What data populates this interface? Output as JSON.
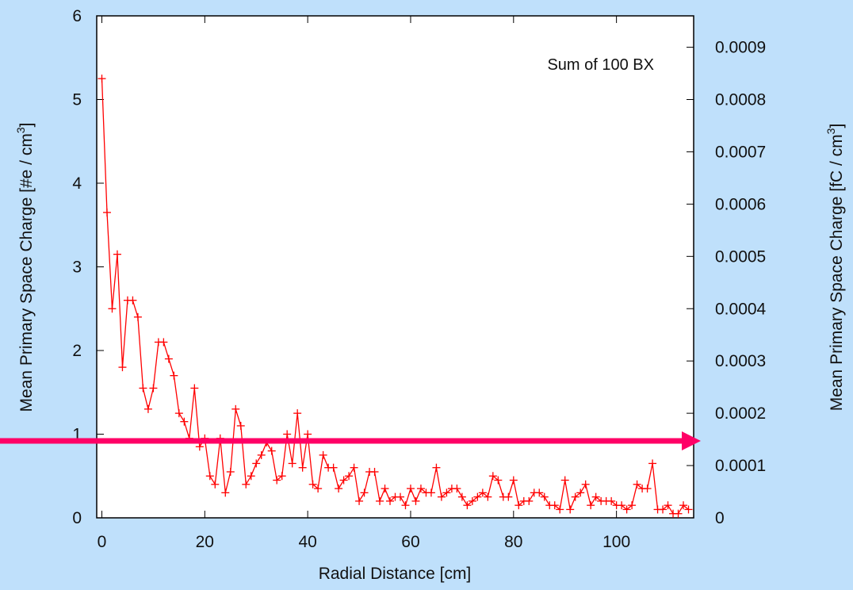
{
  "chart_data": {
    "type": "line",
    "title": "",
    "annotation": "Sum of 100 BX",
    "xlabel": "Radial Distance [cm]",
    "ylabel": "Mean Primary Space Charge [#e / cm",
    "ylabel_sup": "3",
    "ylabel_close": "]",
    "y2label": "Mean Primary Space Charge [fC / cm",
    "y2label_sup": "3",
    "y2label_close": "]",
    "xlim": [
      -1,
      115
    ],
    "ylim": [
      0,
      6
    ],
    "y2lim": [
      0,
      0.00096
    ],
    "x_ticks": [
      "0",
      "20",
      "40",
      "60",
      "80",
      "100"
    ],
    "y_ticks": [
      "0",
      "1",
      "2",
      "3",
      "4",
      "5",
      "6"
    ],
    "y2_ticks": [
      "0",
      "0.0001",
      "0.0002",
      "0.0003",
      "0.0004",
      "0.0005",
      "0.0006",
      "0.0007",
      "0.0008",
      "0.0009"
    ],
    "series": [
      {
        "color": "#ff0000",
        "marker": "plus",
        "x": [
          0,
          1,
          2,
          3,
          4,
          5,
          6,
          7,
          8,
          9,
          10,
          11,
          12,
          13,
          14,
          15,
          16,
          17,
          18,
          19,
          20,
          21,
          22,
          23,
          24,
          25,
          26,
          27,
          28,
          29,
          30,
          31,
          32,
          33,
          34,
          35,
          36,
          37,
          38,
          39,
          40,
          41,
          42,
          43,
          44,
          45,
          46,
          47,
          48,
          49,
          50,
          51,
          52,
          53,
          54,
          55,
          56,
          57,
          58,
          59,
          60,
          61,
          62,
          63,
          64,
          65,
          66,
          67,
          68,
          69,
          70,
          71,
          72,
          73,
          74,
          75,
          76,
          77,
          78,
          79,
          80,
          81,
          82,
          83,
          84,
          85,
          86,
          87,
          88,
          89,
          90,
          91,
          92,
          93,
          94,
          95,
          96,
          97,
          98,
          99,
          100,
          101,
          102,
          103,
          104,
          105,
          106,
          107,
          108,
          109,
          110,
          111,
          112,
          113,
          114
        ],
        "y": [
          5.25,
          3.65,
          2.5,
          3.15,
          1.8,
          2.6,
          2.6,
          2.4,
          1.55,
          1.3,
          1.55,
          2.1,
          2.1,
          1.9,
          1.7,
          1.25,
          1.15,
          0.95,
          1.55,
          0.85,
          0.95,
          0.5,
          0.4,
          0.95,
          0.3,
          0.55,
          1.3,
          1.1,
          0.4,
          0.5,
          0.65,
          0.75,
          0.9,
          0.8,
          0.45,
          0.5,
          1.0,
          0.65,
          1.25,
          0.6,
          1.0,
          0.4,
          0.35,
          0.75,
          0.6,
          0.6,
          0.35,
          0.45,
          0.5,
          0.6,
          0.2,
          0.3,
          0.55,
          0.55,
          0.2,
          0.35,
          0.2,
          0.25,
          0.25,
          0.15,
          0.35,
          0.2,
          0.35,
          0.3,
          0.3,
          0.6,
          0.25,
          0.3,
          0.35,
          0.35,
          0.25,
          0.15,
          0.2,
          0.25,
          0.3,
          0.25,
          0.5,
          0.45,
          0.25,
          0.25,
          0.45,
          0.15,
          0.2,
          0.2,
          0.3,
          0.3,
          0.25,
          0.15,
          0.15,
          0.1,
          0.45,
          0.1,
          0.25,
          0.3,
          0.4,
          0.15,
          0.25,
          0.2,
          0.2,
          0.2,
          0.15,
          0.15,
          0.1,
          0.15,
          0.4,
          0.35,
          0.35,
          0.65,
          0.1,
          0.1,
          0.15,
          0.05,
          0.05,
          0.15,
          0.1
        ]
      }
    ],
    "overlay_arrow": {
      "y": 0.92,
      "color": "#ff0066"
    },
    "grid": false
  }
}
